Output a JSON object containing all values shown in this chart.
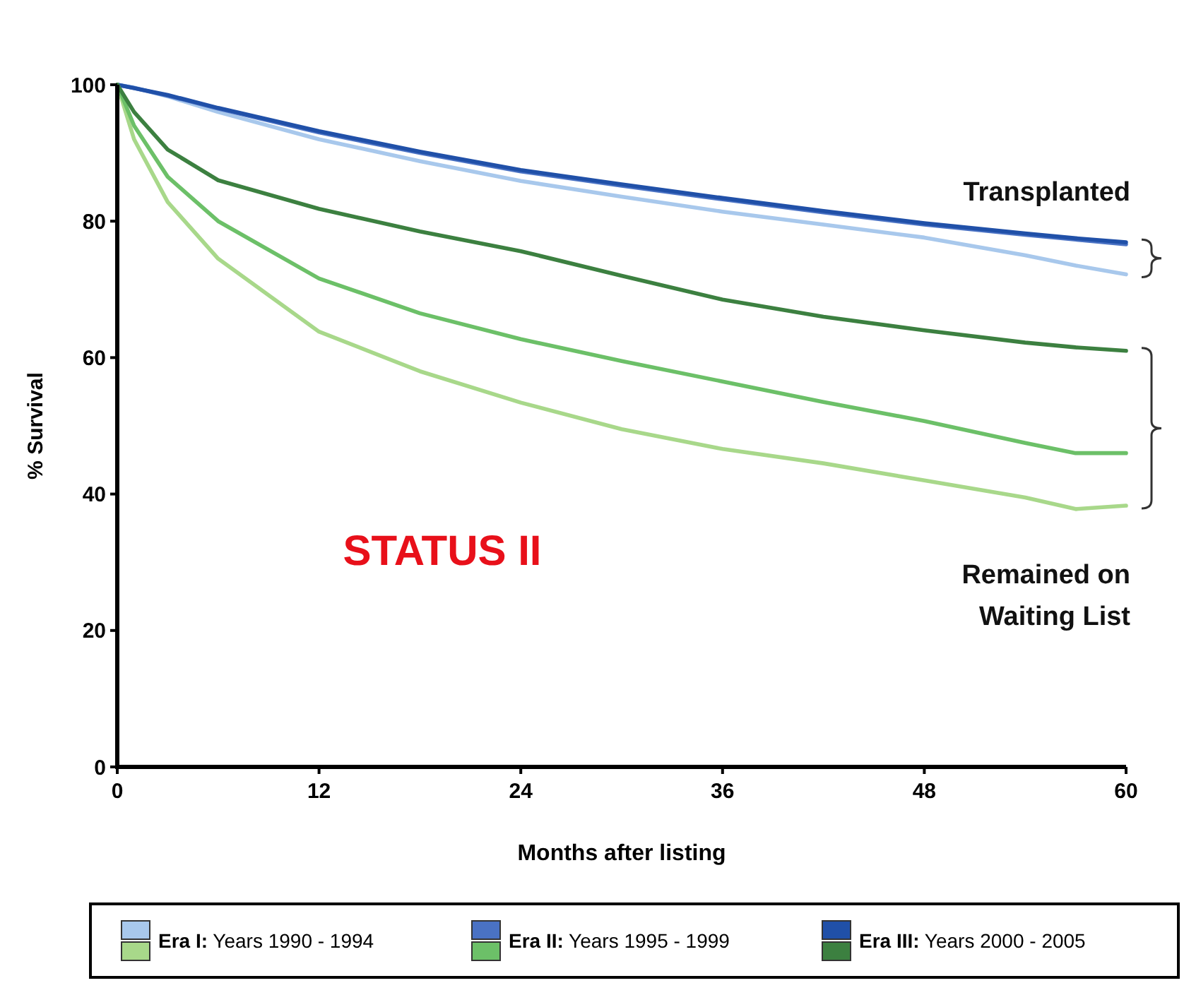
{
  "chart_data": {
    "type": "line",
    "xlabel": "Months after listing",
    "ylabel": "% Survival",
    "x": [
      0,
      1,
      3,
      6,
      12,
      18,
      24,
      30,
      36,
      42,
      48,
      54,
      57,
      60
    ],
    "xlim": [
      0,
      60
    ],
    "xticks": [
      0,
      12,
      24,
      36,
      48,
      60
    ],
    "ylim": [
      0,
      100
    ],
    "yticks": [
      0,
      20,
      40,
      60,
      80,
      100
    ],
    "grid": false,
    "legend": "bottom",
    "marker": "none",
    "line_style": "solid",
    "annotations": [
      "STATUS II",
      "Transplanted",
      "Remained on Waiting List"
    ],
    "series": [
      {
        "name": "Era I: Years 1990 - 1994",
        "color": "#a8c8ec",
        "values": [
          100,
          99.6,
          98.3,
          96,
          92,
          88.8,
          85.9,
          83.6,
          81.4,
          79.5,
          77.6,
          75,
          73.5,
          72.2
        ]
      },
      {
        "name": "Era II: Years 1995 - 1999",
        "color": "#4a72c4",
        "values": [
          100,
          99.5,
          98.4,
          96.5,
          93,
          90,
          87.3,
          85.2,
          83.2,
          81.3,
          79.5,
          78,
          77.3,
          76.6
        ]
      },
      {
        "name": "Era III: Years 2000 - 2005",
        "color": "#2050a8",
        "values": [
          100,
          99.5,
          98.5,
          96.6,
          93.2,
          90.2,
          87.5,
          85.4,
          83.4,
          81.5,
          79.7,
          78.2,
          77.5,
          76.9
        ]
      },
      {
        "color": "#a8d88a",
        "values": [
          100,
          92,
          82.8,
          74.5,
          63.8,
          58,
          53.4,
          49.5,
          46.6,
          44.5,
          42,
          39.5,
          37.8,
          38.3
        ]
      },
      {
        "color": "#6cc068",
        "values": [
          100,
          94,
          86.5,
          80,
          71.6,
          66.5,
          62.7,
          59.5,
          56.5,
          53.5,
          50.7,
          47.5,
          46,
          46
        ]
      },
      {
        "color": "#3c8040",
        "values": [
          100,
          96,
          90.5,
          86,
          81.8,
          78.5,
          75.6,
          72,
          68.5,
          66,
          64,
          62.2,
          61.5,
          61
        ]
      }
    ]
  }
}
